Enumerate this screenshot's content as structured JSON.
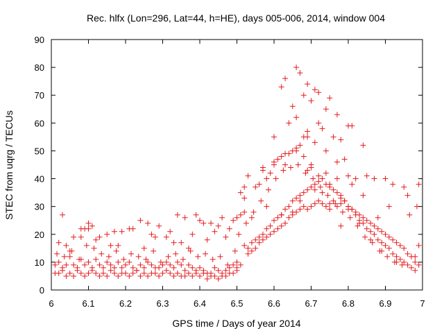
{
  "chart_data": {
    "type": "scatter",
    "title": "Rec. hlfx (Lon=296, Lat=44, h=HE), days 005-006, 2014, window 004",
    "xlabel": "GPS time / Days of year 2014",
    "ylabel": "STEC from uqrg / TECUs",
    "xlim": [
      6,
      7
    ],
    "ylim": [
      0,
      90
    ],
    "xticks": [
      6,
      6.1,
      6.2,
      6.3,
      6.4,
      6.5,
      6.6,
      6.7,
      6.8,
      6.9,
      7
    ],
    "xtick_labels": [
      "6",
      "6.1",
      "6.2",
      "6.3",
      "6.4",
      "6.5",
      "6.6",
      "6.7",
      "6.8",
      "6.9",
      "7"
    ],
    "yticks": [
      0,
      10,
      20,
      30,
      40,
      50,
      60,
      70,
      80,
      90
    ],
    "ytick_labels": [
      "0",
      "10",
      "20",
      "30",
      "40",
      "50",
      "60",
      "70",
      "80",
      "90"
    ],
    "marker": "+",
    "color": "#e31a1c",
    "grid": false,
    "legend": "none",
    "series": [
      {
        "name": "STEC",
        "x": [
          6.01,
          6.02,
          6.03,
          6.04,
          6.05,
          6.06,
          6.07,
          6.08,
          6.09,
          6.1,
          6.11,
          6.12,
          6.13,
          6.14,
          6.15,
          6.16,
          6.17,
          6.18,
          6.19,
          6.2,
          6.21,
          6.22,
          6.23,
          6.24,
          6.25,
          6.26,
          6.27,
          6.28,
          6.29,
          6.3,
          6.31,
          6.32,
          6.33,
          6.34,
          6.35,
          6.36,
          6.37,
          6.38,
          6.39,
          6.4,
          6.41,
          6.42,
          6.43,
          6.44,
          6.45,
          6.46,
          6.47,
          6.48,
          6.49,
          6.5,
          6.01,
          6.02,
          6.03,
          6.04,
          6.05,
          6.06,
          6.07,
          6.08,
          6.09,
          6.1,
          6.11,
          6.12,
          6.13,
          6.14,
          6.15,
          6.16,
          6.17,
          6.18,
          6.19,
          6.2,
          6.21,
          6.22,
          6.23,
          6.24,
          6.25,
          6.26,
          6.27,
          6.28,
          6.29,
          6.3,
          6.31,
          6.32,
          6.33,
          6.34,
          6.35,
          6.36,
          6.37,
          6.38,
          6.39,
          6.4,
          6.41,
          6.42,
          6.43,
          6.44,
          6.45,
          6.46,
          6.47,
          6.48,
          6.49,
          6.5,
          6.015,
          6.035,
          6.055,
          6.075,
          6.095,
          6.115,
          6.135,
          6.155,
          6.175,
          6.195,
          6.215,
          6.235,
          6.255,
          6.275,
          6.295,
          6.315,
          6.335,
          6.355,
          6.375,
          6.395,
          6.415,
          6.435,
          6.455,
          6.475,
          6.495,
          6.02,
          6.05,
          6.08,
          6.1,
          6.12,
          6.15,
          6.18,
          6.22,
          6.25,
          6.28,
          6.32,
          6.35,
          6.38,
          6.42,
          6.45,
          6.48,
          6.04,
          6.09,
          6.11,
          6.17,
          6.21,
          6.27,
          6.33,
          6.37,
          6.41,
          6.47,
          6.03,
          6.1,
          6.24,
          6.36,
          6.4,
          6.46,
          6.06,
          6.13,
          6.19,
          6.26,
          6.31,
          6.39,
          6.44,
          6.08,
          6.16,
          6.29,
          6.34,
          6.43,
          6.49,
          6.5,
          6.51,
          6.52,
          6.53,
          6.54,
          6.55,
          6.56,
          6.57,
          6.58,
          6.59,
          6.6,
          6.61,
          6.62,
          6.63,
          6.64,
          6.65,
          6.66,
          6.67,
          6.68,
          6.69,
          6.7,
          6.71,
          6.72,
          6.73,
          6.74,
          6.75,
          6.76,
          6.77,
          6.78,
          6.79,
          6.8,
          6.81,
          6.82,
          6.83,
          6.84,
          6.85,
          6.86,
          6.87,
          6.88,
          6.89,
          6.9,
          6.91,
          6.92,
          6.93,
          6.94,
          6.95,
          6.96,
          6.97,
          6.98,
          6.99,
          6.5,
          6.51,
          6.52,
          6.53,
          6.54,
          6.55,
          6.56,
          6.57,
          6.58,
          6.59,
          6.6,
          6.61,
          6.62,
          6.63,
          6.64,
          6.65,
          6.66,
          6.67,
          6.68,
          6.69,
          6.7,
          6.71,
          6.72,
          6.73,
          6.74,
          6.75,
          6.76,
          6.77,
          6.78,
          6.79,
          6.8,
          6.81,
          6.82,
          6.83,
          6.84,
          6.85,
          6.86,
          6.87,
          6.88,
          6.89,
          6.9,
          6.91,
          6.92,
          6.93,
          6.94,
          6.95,
          6.96,
          6.97,
          6.98,
          6.99,
          6.505,
          6.525,
          6.545,
          6.565,
          6.585,
          6.605,
          6.625,
          6.645,
          6.665,
          6.685,
          6.705,
          6.725,
          6.745,
          6.765,
          6.785,
          6.805,
          6.825,
          6.845,
          6.865,
          6.885,
          6.905,
          6.925,
          6.945,
          6.965,
          6.985,
          6.52,
          6.55,
          6.58,
          6.6,
          6.62,
          6.65,
          6.68,
          6.7,
          6.72,
          6.75,
          6.78,
          6.8,
          6.83,
          6.86,
          6.89,
          6.93,
          6.96,
          6.99,
          6.53,
          6.57,
          6.61,
          6.64,
          6.67,
          6.69,
          6.71,
          6.74,
          6.77,
          6.8,
          6.84,
          6.88,
          6.92,
          6.95,
          6.51,
          6.56,
          6.59,
          6.63,
          6.66,
          6.68,
          6.73,
          6.76,
          6.79,
          6.82,
          6.87,
          6.91,
          6.54,
          6.58,
          6.62,
          6.65,
          6.67,
          6.69,
          6.71,
          6.73,
          6.75,
          6.78,
          6.81,
          6.85,
          6.52,
          6.57,
          6.6,
          6.63,
          6.66,
          6.7,
          6.74,
          6.77,
          6.8,
          6.84,
          6.6,
          6.64,
          6.66,
          6.69,
          6.72,
          6.74,
          6.77,
          6.7,
          6.68,
          6.62,
          6.65,
          6.71,
          6.67,
          6.75,
          6.63,
          6.66,
          6.69,
          6.72,
          6.81,
          6.78,
          6.9,
          6.98
        ],
        "y": [
          6,
          6,
          7,
          5,
          6,
          5,
          7,
          6,
          5,
          6,
          7,
          6,
          5,
          6,
          5,
          7,
          6,
          5,
          6,
          6,
          5,
          6,
          7,
          5,
          6,
          5,
          6,
          6,
          5,
          6,
          7,
          6,
          5,
          6,
          5,
          5,
          6,
          5,
          6,
          5,
          6,
          4,
          5,
          5,
          4,
          5,
          5,
          6,
          6,
          7,
          9,
          10,
          8,
          9,
          12,
          9,
          8,
          11,
          9,
          10,
          8,
          11,
          9,
          8,
          10,
          9,
          8,
          10,
          8,
          9,
          10,
          8,
          7,
          9,
          8,
          10,
          9,
          8,
          8,
          9,
          10,
          9,
          8,
          10,
          9,
          7,
          9,
          8,
          7,
          8,
          7,
          6,
          6,
          8,
          7,
          6,
          7,
          8,
          9,
          10,
          13,
          12,
          14,
          11,
          16,
          15,
          13,
          12,
          14,
          11,
          13,
          12,
          11,
          14,
          10,
          12,
          13,
          11,
          14,
          12,
          13,
          11,
          12,
          9,
          14,
          17,
          14,
          19,
          22,
          18,
          20,
          16,
          22,
          15,
          19,
          21,
          17,
          20,
          18,
          23,
          22,
          16,
          22,
          23,
          21,
          22,
          20,
          17,
          15,
          24,
          19,
          27,
          24,
          25,
          26,
          25,
          26,
          19,
          19,
          21,
          24,
          19,
          27,
          21,
          22,
          16,
          23,
          27,
          24,
          25,
          26,
          27,
          28,
          13,
          14,
          15,
          17,
          18,
          19,
          20,
          21,
          22,
          23,
          24,
          26,
          27,
          28,
          29,
          30,
          29,
          30,
          31,
          32,
          31,
          30,
          31,
          32,
          30,
          31,
          32,
          30,
          29,
          28,
          27,
          26,
          25,
          24,
          23,
          22,
          21,
          20,
          19,
          18,
          17,
          16,
          15,
          13,
          12,
          10,
          9,
          8,
          9,
          16,
          15,
          17,
          18,
          19,
          20,
          22,
          23,
          25,
          26,
          27,
          29,
          30,
          32,
          33,
          34,
          35,
          36,
          37,
          38,
          39,
          40,
          38,
          37,
          36,
          35,
          34,
          32,
          30,
          29,
          27,
          25,
          24,
          22,
          21,
          20,
          18,
          17,
          16,
          15,
          13,
          12,
          11,
          10,
          9,
          8,
          12,
          16,
          20,
          24,
          28,
          32,
          36,
          40,
          43,
          44,
          45,
          42,
          40,
          37,
          34,
          31,
          28,
          26,
          23,
          19,
          17,
          14,
          12,
          10,
          9,
          27,
          30,
          33,
          37,
          40,
          45,
          48,
          50,
          48,
          44,
          41,
          38,
          33,
          29,
          24,
          18,
          14,
          10,
          34,
          38,
          41,
          43,
          47,
          49,
          52,
          55,
          53,
          50,
          46,
          41,
          34,
          26,
          38,
          37,
          35,
          38,
          42,
          45,
          50,
          55,
          58,
          55,
          47,
          40,
          40,
          30,
          26,
          30,
          27,
          28,
          32,
          43,
          36,
          35,
          29,
          23,
          38,
          41,
          37,
          44,
          46,
          49,
          51,
          45,
          42,
          40,
          59,
          52,
          55,
          60,
          62,
          57,
          60,
          65,
          63,
          68,
          70,
          73,
          66,
          72,
          78,
          69,
          76,
          80,
          74,
          71,
          59,
          54,
          40,
          7
        ]
      }
    ]
  }
}
